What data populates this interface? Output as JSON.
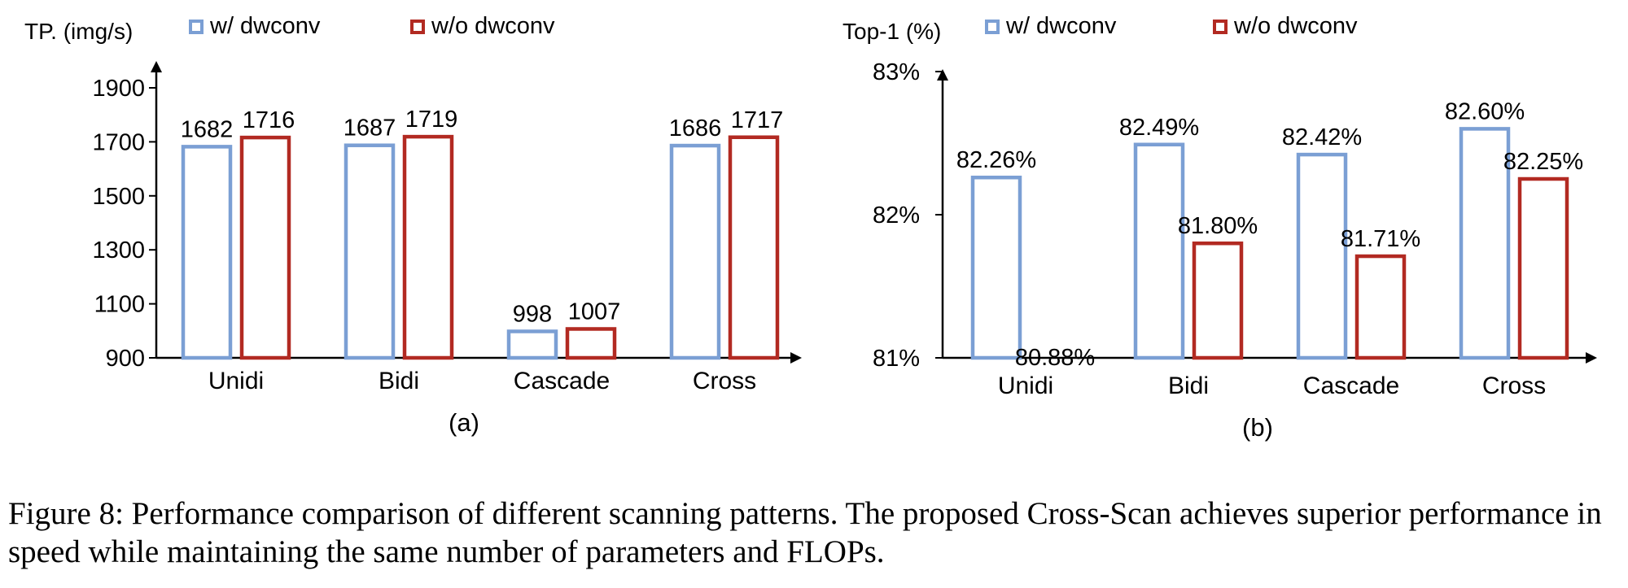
{
  "chart_data": [
    {
      "type": "bar",
      "ylabel": "TP. (img/s)",
      "panel_label": "(a)",
      "categories": [
        "Unidi",
        "Bidi",
        "Cascade",
        "Cross"
      ],
      "series": [
        {
          "name": "w/ dwconv",
          "values": [
            1682,
            1687,
            998,
            1686
          ],
          "labels": [
            "1682",
            "1687",
            "998",
            "1686"
          ]
        },
        {
          "name": "w/o dwconv",
          "values": [
            1716,
            1719,
            1007,
            1717
          ],
          "labels": [
            "1716",
            "1719",
            "1007",
            "1717"
          ]
        }
      ],
      "ylim": [
        900,
        1900
      ],
      "yticks": [
        900,
        1100,
        1300,
        1500,
        1700,
        1900
      ],
      "ytick_labels": [
        "900",
        "1100",
        "1300",
        "1500",
        "1700",
        "1900"
      ],
      "legend": "top",
      "grid": false
    },
    {
      "type": "bar",
      "ylabel": "Top-1 (%)",
      "panel_label": "(b)",
      "categories": [
        "Unidi",
        "Bidi",
        "Cascade",
        "Cross"
      ],
      "series": [
        {
          "name": "w/ dwconv",
          "values": [
            82.26,
            82.49,
            82.42,
            82.6
          ],
          "labels": [
            "82.26%",
            "82.49%",
            "82.42%",
            "82.60%"
          ]
        },
        {
          "name": "w/o dwconv",
          "values": [
            80.88,
            81.8,
            81.71,
            82.25
          ],
          "labels": [
            "80.88%",
            "81.80%",
            "81.71%",
            "82.25%"
          ]
        }
      ],
      "ylim": [
        81,
        83
      ],
      "yticks": [
        81,
        82,
        83
      ],
      "ytick_labels": [
        "81%",
        "82%",
        "83%"
      ],
      "legend": "top",
      "grid": false
    }
  ],
  "colors": {
    "w_dwconv": "#7b9fd4",
    "wo_dwconv": "#b22a22"
  },
  "caption": "Figure 8: Performance comparison of different scanning patterns. The proposed Cross-Scan achieves superior performance in speed while maintaining the same number of parameters and FLOPs."
}
